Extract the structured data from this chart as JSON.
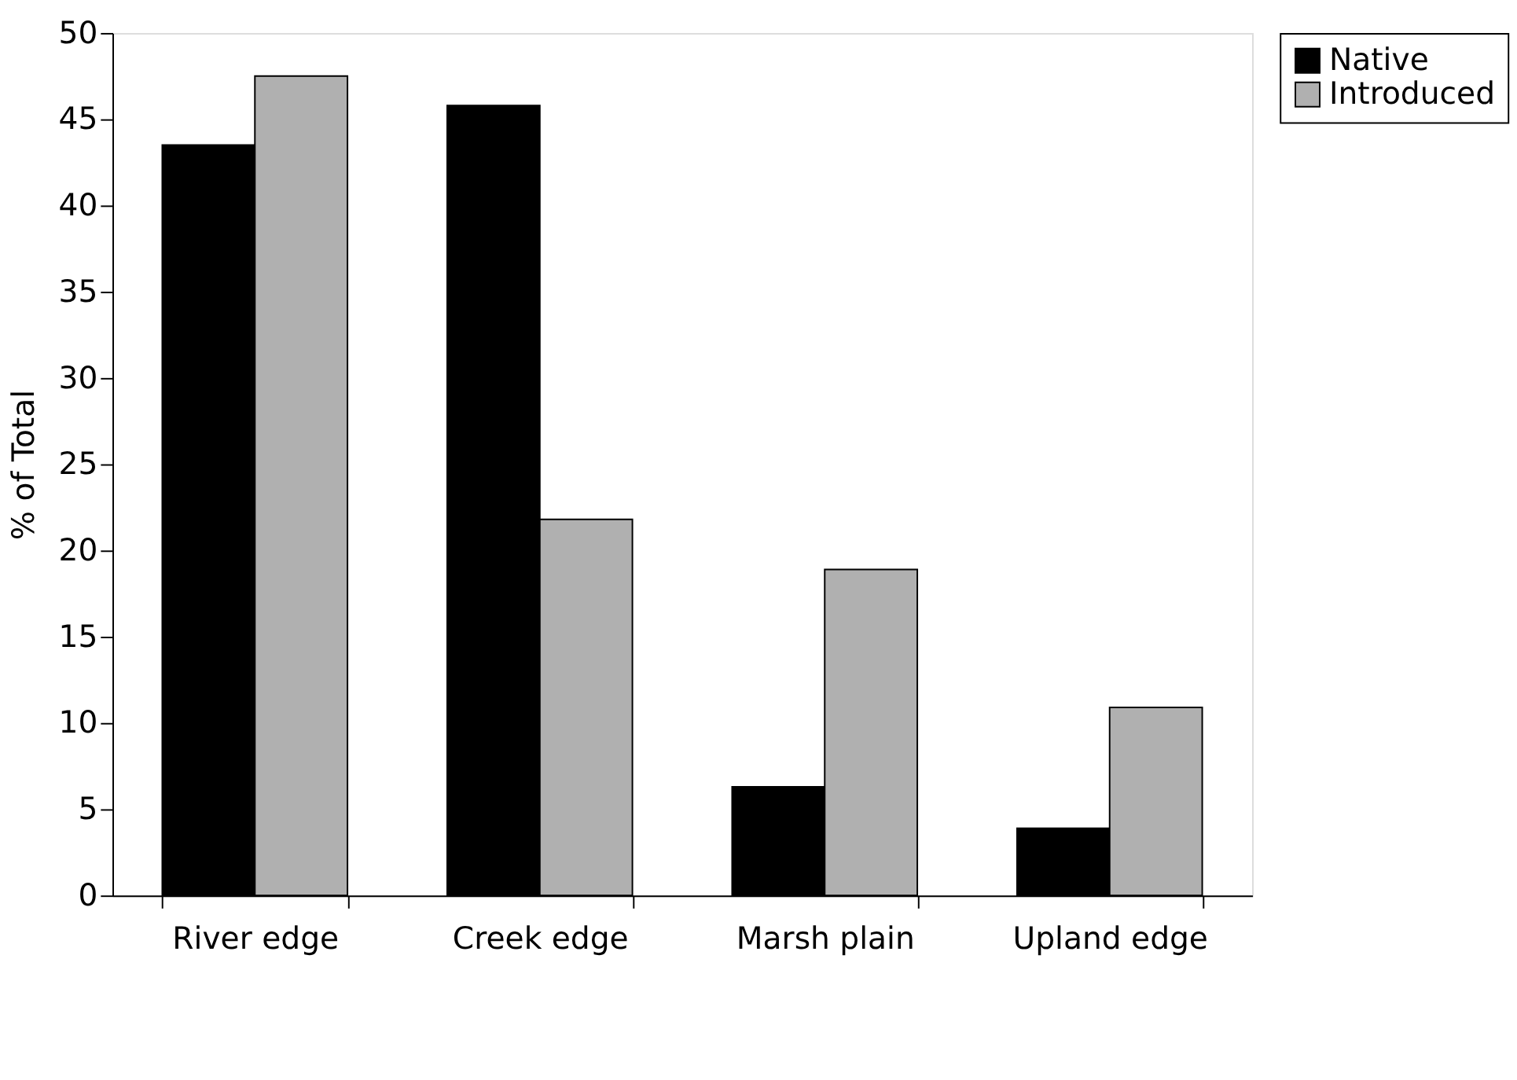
{
  "chart_data": {
    "type": "bar",
    "ylabel": "% of Total",
    "categories": [
      "River edge",
      "Creek edge",
      "Marsh plain",
      "Upland edge"
    ],
    "series": [
      {
        "name": "Native",
        "color": "#000000",
        "values": [
          43.5,
          45.8,
          6.3,
          3.9
        ]
      },
      {
        "name": "Introduced",
        "color": "#b0b0b0",
        "values": [
          47.5,
          21.8,
          18.9,
          10.9
        ]
      }
    ],
    "ylim": [
      0,
      50
    ],
    "yticks": [
      0,
      5,
      10,
      15,
      20,
      25,
      30,
      35,
      40,
      45,
      50
    ],
    "grid": false,
    "legend": "right"
  }
}
